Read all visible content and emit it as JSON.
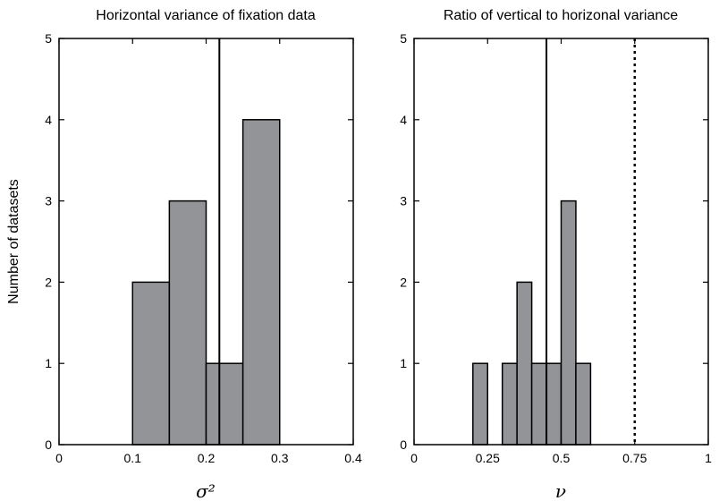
{
  "figure": {
    "ylabel": "Number of datasets"
  },
  "chart_data": [
    {
      "type": "bar",
      "title": "Horizontal variance of fixation data",
      "xlabel": "σ²",
      "ylabel": "Number of datasets",
      "xlim": [
        0,
        0.4
      ],
      "ylim": [
        0,
        5
      ],
      "xticks": [
        0,
        0.1,
        0.2,
        0.3,
        0.4
      ],
      "xtick_labels": [
        "0",
        "0.1",
        "0.2",
        "0.3",
        "0.4"
      ],
      "yticks": [
        0,
        1,
        2,
        3,
        4,
        5
      ],
      "ytick_labels": [
        "0",
        "1",
        "2",
        "3",
        "4",
        "5"
      ],
      "bar_color": "#939498",
      "bins": [
        {
          "x0": 0.1,
          "x1": 0.15,
          "value": 2
        },
        {
          "x0": 0.15,
          "x1": 0.2,
          "value": 3
        },
        {
          "x0": 0.2,
          "x1": 0.25,
          "value": 1
        },
        {
          "x0": 0.25,
          "x1": 0.3,
          "value": 4
        }
      ],
      "reference_lines": [
        {
          "x": 0.218,
          "style": "solid"
        }
      ],
      "grid": false
    },
    {
      "type": "bar",
      "title": "Ratio of vertical to horizonal variance",
      "xlabel": "ν",
      "xlim": [
        0,
        1
      ],
      "ylim": [
        0,
        5
      ],
      "xticks": [
        0,
        0.25,
        0.5,
        0.75,
        1
      ],
      "xtick_labels": [
        "0",
        "0.25",
        "0.5",
        "0.75",
        "1"
      ],
      "yticks": [
        0,
        1,
        2,
        3,
        4,
        5
      ],
      "ytick_labels": [
        "0",
        "1",
        "2",
        "3",
        "4",
        "5"
      ],
      "bar_color": "#939498",
      "bins": [
        {
          "x0": 0.2,
          "x1": 0.25,
          "value": 1
        },
        {
          "x0": 0.25,
          "x1": 0.3,
          "value": 0
        },
        {
          "x0": 0.3,
          "x1": 0.35,
          "value": 1
        },
        {
          "x0": 0.35,
          "x1": 0.4,
          "value": 2
        },
        {
          "x0": 0.4,
          "x1": 0.45,
          "value": 1
        },
        {
          "x0": 0.45,
          "x1": 0.5,
          "value": 1
        },
        {
          "x0": 0.5,
          "x1": 0.55,
          "value": 3
        },
        {
          "x0": 0.55,
          "x1": 0.6,
          "value": 1
        }
      ],
      "reference_lines": [
        {
          "x": 0.45,
          "style": "solid"
        },
        {
          "x": 0.75,
          "style": "dotted"
        }
      ],
      "grid": false
    }
  ]
}
